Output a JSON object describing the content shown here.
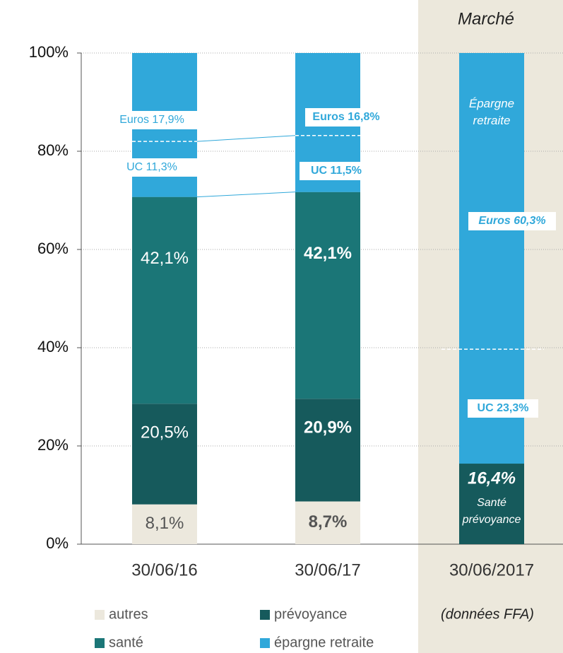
{
  "chart_data": {
    "type": "bar",
    "stacked": true,
    "categories": [
      "30/06/16",
      "30/06/17",
      "30/06/2017"
    ],
    "ylim": [
      0,
      100
    ],
    "yticks": [
      {
        "value": 0,
        "label": "0%"
      },
      {
        "value": 20,
        "label": "20%"
      },
      {
        "value": 40,
        "label": "40%"
      },
      {
        "value": 60,
        "label": "60%"
      },
      {
        "value": 80,
        "label": "80%"
      },
      {
        "value": 100,
        "label": "100%"
      }
    ],
    "grid": true,
    "legend": "bottom",
    "series": [
      {
        "name": "autres",
        "color": "#ece8dd",
        "values": [
          8.1,
          8.7,
          null
        ],
        "value_labels": [
          "8,1%",
          "8,7%",
          null
        ]
      },
      {
        "name": "prévoyance",
        "color": "#165a5c",
        "values": [
          20.5,
          20.9,
          16.4
        ],
        "value_labels": [
          "20,5%",
          "20,9%",
          "16,4%"
        ]
      },
      {
        "name": "santé",
        "color": "#1b7677",
        "values": [
          42.1,
          42.1,
          null
        ],
        "value_labels": [
          "42,1%",
          "42,1%",
          null
        ]
      },
      {
        "name": "épargne retraite",
        "color": "#30a8da",
        "values": [
          29.3,
          28.3,
          83.6
        ],
        "value_labels": [
          "29,3%",
          "28,3%",
          "83,6%"
        ]
      }
    ],
    "sub_series": [
      {
        "values": [
          11.3,
          11.5,
          23.3
        ],
        "value_labels": [
          "UC 11,3%",
          "UC 11,5%",
          "UC 23,3%"
        ]
      },
      {
        "values": [
          17.9,
          16.8,
          60.3
        ],
        "value_labels": [
          "Euros 17,9%",
          "Euros 16,8%",
          "Euros 60,3%"
        ]
      }
    ],
    "annotations": {
      "market": "Marché",
      "source": "(données FFA)",
      "epargne_retraite": [
        "Épargne",
        "retraite"
      ],
      "sante_prevoyance": [
        "Santé",
        "prévoyance"
      ]
    }
  }
}
